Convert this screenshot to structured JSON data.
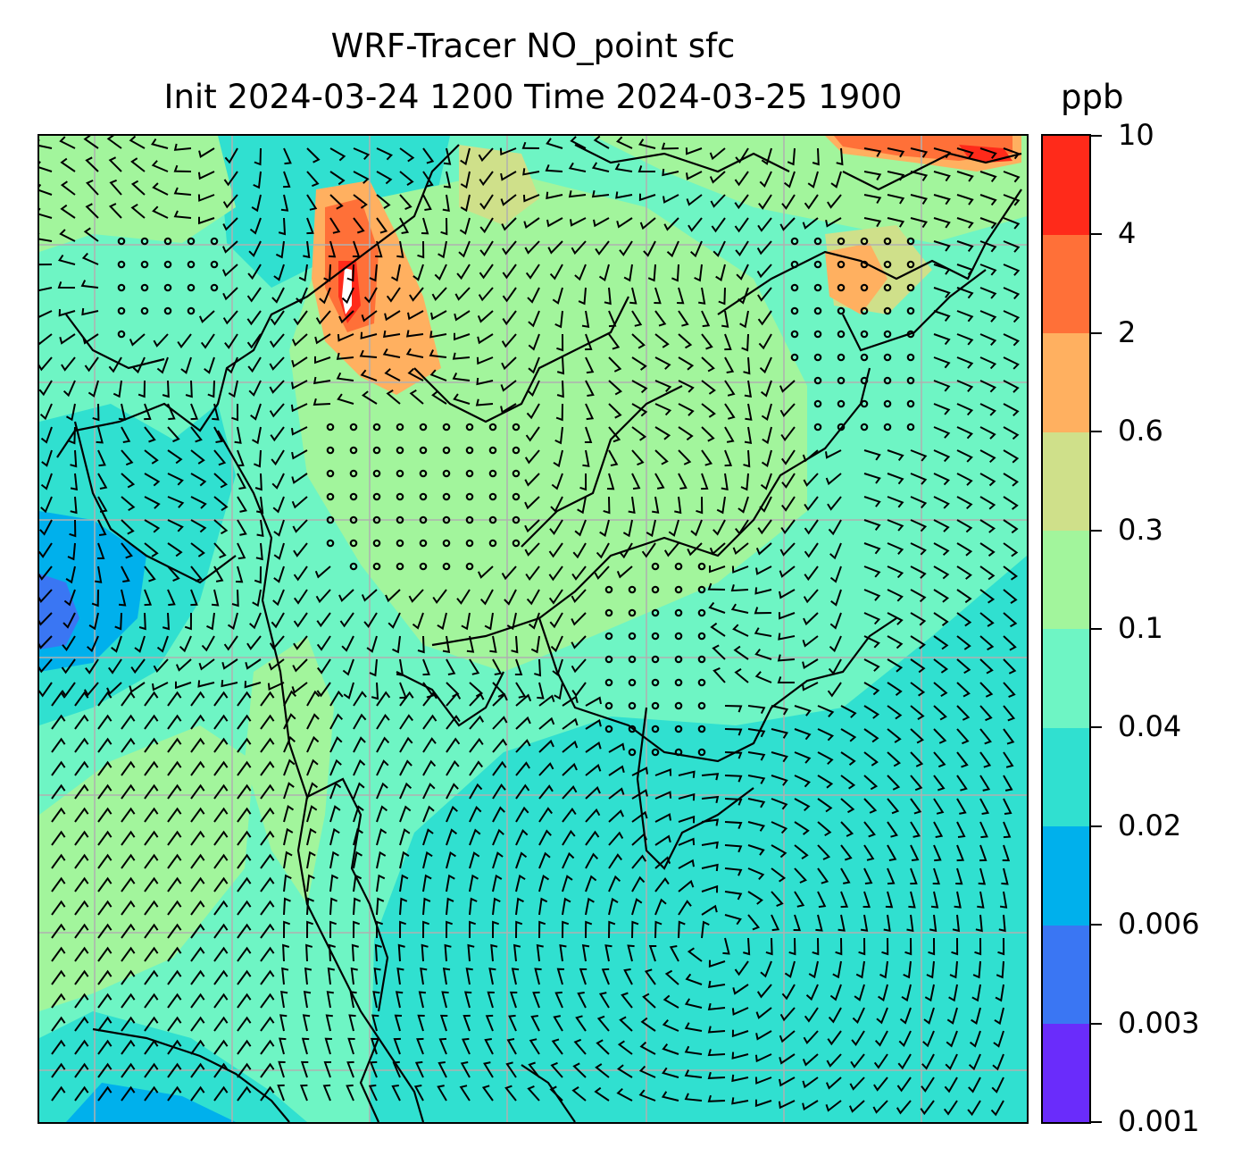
{
  "title": {
    "line1": "WRF-Tracer NO_point sfc",
    "line2": "Init 2024-03-24 1200 Time 2024-03-25 1900",
    "units": "ppb"
  },
  "colorbar": {
    "levels": [
      "0.001",
      "0.003",
      "0.006",
      "0.02",
      "0.04",
      "0.1",
      "0.3",
      "0.6",
      "2",
      "4",
      "10"
    ],
    "colors": [
      "#6a2cfb",
      "#3a76f3",
      "#00b0ec",
      "#30e0d0",
      "#6ef5c4",
      "#a2f59c",
      "#cfe08a",
      "#ffb060",
      "#ff7038",
      "#ff2a1a"
    ]
  },
  "map": {
    "background_color": "#6ef5c4",
    "gridline_color": "#b0b0b0",
    "coastline_color": "#000000",
    "barb_color": "#000000",
    "regions": [
      {
        "level": "0.02",
        "color": "#30e0d0"
      },
      {
        "level": "0.006",
        "color": "#00b0ec"
      },
      {
        "level": "0.003",
        "color": "#3a76f3"
      },
      {
        "level": "0.1",
        "color": "#a2f59c"
      },
      {
        "level": "0.3",
        "color": "#cfe08a"
      },
      {
        "level": "0.6",
        "color": "#ffb060"
      },
      {
        "level": "2",
        "color": "#ff7038"
      },
      {
        "level": "10",
        "color": "#ff2a1a"
      }
    ]
  }
}
